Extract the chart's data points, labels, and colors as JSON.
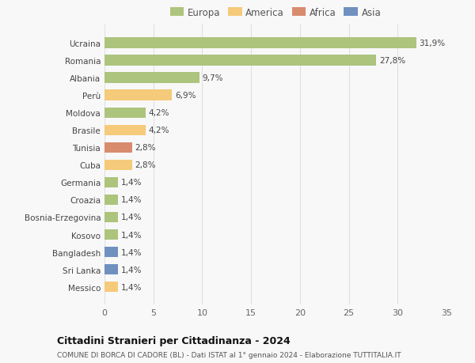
{
  "countries": [
    "Ucraina",
    "Romania",
    "Albania",
    "Perù",
    "Moldova",
    "Brasile",
    "Tunisia",
    "Cuba",
    "Germania",
    "Croazia",
    "Bosnia-Erzegovina",
    "Kosovo",
    "Bangladesh",
    "Sri Lanka",
    "Messico"
  ],
  "values": [
    31.9,
    27.8,
    9.7,
    6.9,
    4.2,
    4.2,
    2.8,
    2.8,
    1.4,
    1.4,
    1.4,
    1.4,
    1.4,
    1.4,
    1.4
  ],
  "labels": [
    "31,9%",
    "27,8%",
    "9,7%",
    "6,9%",
    "4,2%",
    "4,2%",
    "2,8%",
    "2,8%",
    "1,4%",
    "1,4%",
    "1,4%",
    "1,4%",
    "1,4%",
    "1,4%",
    "1,4%"
  ],
  "colors": [
    "#adc47d",
    "#adc47d",
    "#adc47d",
    "#f5ca7a",
    "#adc47d",
    "#f5ca7a",
    "#d98b6e",
    "#f5ca7a",
    "#adc47d",
    "#adc47d",
    "#adc47d",
    "#adc47d",
    "#7090c0",
    "#7090c0",
    "#f5ca7a"
  ],
  "legend_labels": [
    "Europa",
    "America",
    "Africa",
    "Asia"
  ],
  "legend_colors": [
    "#adc47d",
    "#f5ca7a",
    "#d98b6e",
    "#7090c0"
  ],
  "title": "Cittadini Stranieri per Cittadinanza - 2024",
  "subtitle": "COMUNE DI BORCA DI CADORE (BL) - Dati ISTAT al 1° gennaio 2024 - Elaborazione TUTTITALIA.IT",
  "xlim": [
    0,
    35
  ],
  "xticks": [
    0,
    5,
    10,
    15,
    20,
    25,
    30,
    35
  ],
  "bg_color": "#f8f8f8",
  "grid_color": "#e0e0e0"
}
